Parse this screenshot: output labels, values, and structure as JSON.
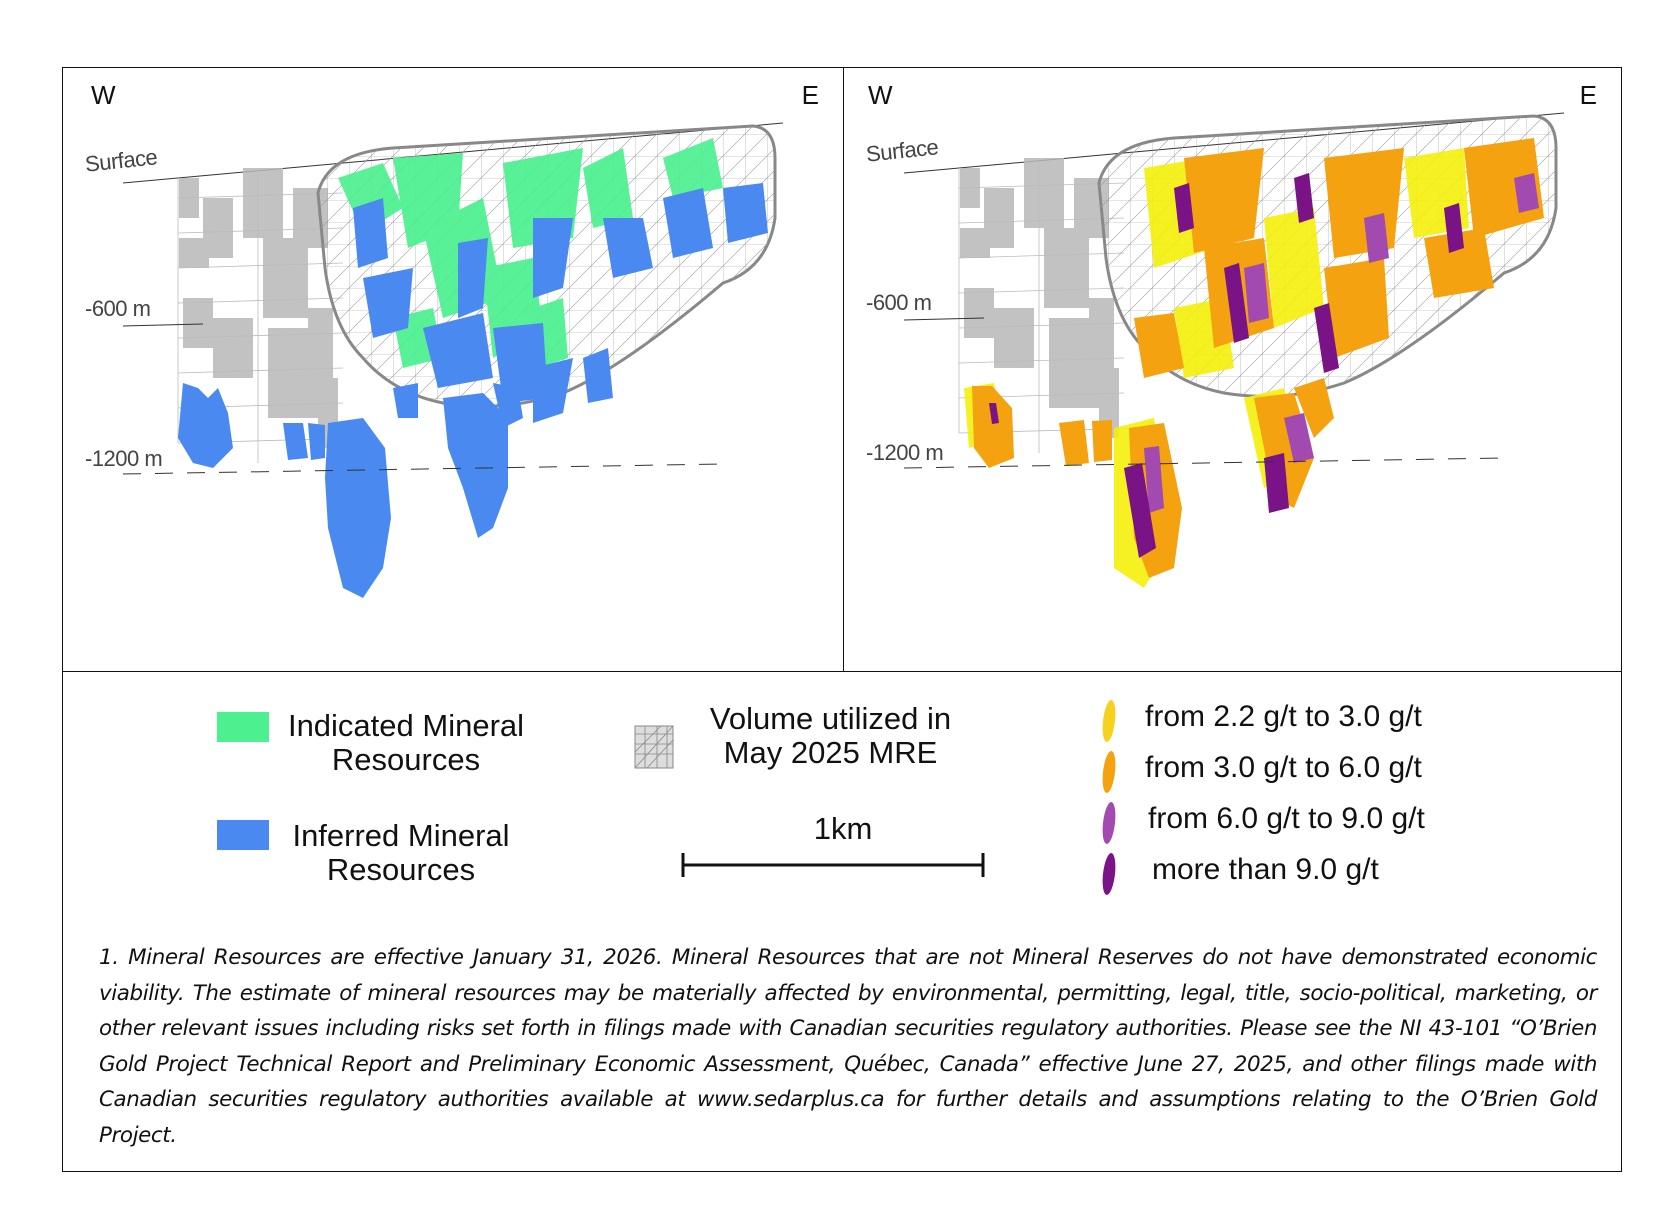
{
  "panels": [
    {
      "id": "resource-classification",
      "west_label": "W",
      "east_label": "E",
      "surface_label": "Surface",
      "depth_labels": [
        "-600 m",
        "-1200 m"
      ]
    },
    {
      "id": "grade-distribution",
      "west_label": "W",
      "east_label": "E",
      "surface_label": "Surface",
      "depth_labels": [
        "-600 m",
        "-1200 m"
      ]
    }
  ],
  "colors": {
    "indicated": "#4cf08f",
    "inferred": "#4a8af0",
    "wireframe": "#8a8a8a",
    "grade_2_2_3_0": "#f6d21e",
    "grade_3_0_6_0": "#f4a20f",
    "grade_6_0_9_0": "#a24ab0",
    "grade_9_plus": "#7a1386",
    "yellow_bright": "#f5f00a"
  },
  "legend": {
    "indicated": {
      "line1": "Indicated Mineral",
      "line2": "Resources"
    },
    "inferred": {
      "line1": "Inferred Mineral",
      "line2": "Resources"
    },
    "volume": {
      "line1": "Volume utilized in",
      "line2": "May 2025 MRE"
    },
    "scale_label": "1km",
    "grades": [
      {
        "label": "from 2.2 g/t to 3.0 g/t",
        "color_key": "grade_2_2_3_0"
      },
      {
        "label": "from 3.0 g/t to 6.0 g/t",
        "color_key": "grade_3_0_6_0"
      },
      {
        "label": "from 6.0 g/t to 9.0 g/t",
        "color_key": "grade_6_0_9_0"
      },
      {
        "label": "more than 9.0 g/t",
        "color_key": "grade_9_plus"
      }
    ]
  },
  "footnote": "1. Mineral Resources are effective January 31, 2026. Mineral Resources that are not Mineral Reserves do not have demonstrated economic viability. The estimate of mineral resources may be materially affected by environmental, permitting, legal, title, socio-political, marketing, or other relevant issues including risks set forth in filings made with Canadian securities regulatory authorities. Please see the NI 43-101 “O’Brien Gold Project Technical Report and Preliminary Economic Assessment, Québec, Canada” effective June 27, 2025, and other filings made with Canadian securities regulatory authorities available at www.sedarplus.ca for further details and assumptions relating to the O’Brien Gold Project."
}
